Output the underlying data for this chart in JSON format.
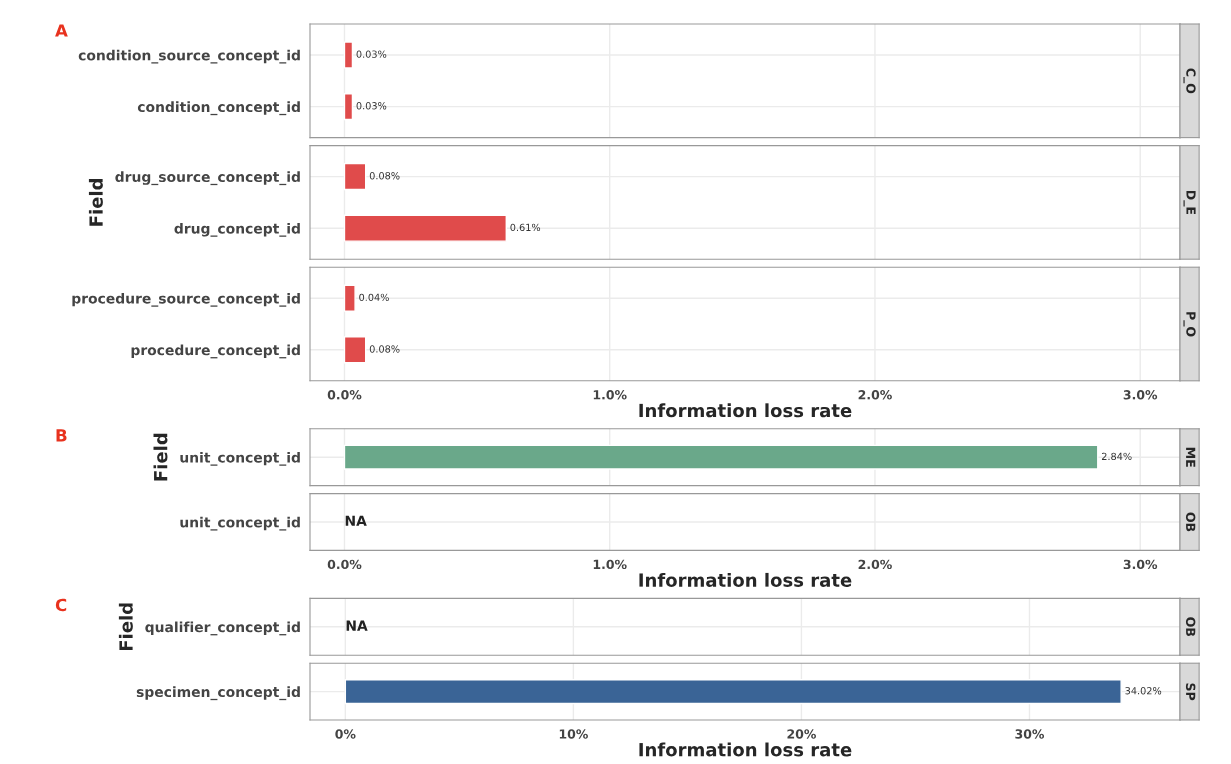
{
  "chart_data": [
    {
      "type": "bar",
      "orientation": "horizontal",
      "title": "C_O",
      "annotations": [
        "A"
      ],
      "categories": [
        "condition_source_concept_id",
        "condition_concept_id"
      ],
      "values": [
        0.03,
        0.03
      ],
      "color": "#e04b4b",
      "value_labels": [
        "0.03%",
        "0.03%"
      ],
      "xlim": [
        -0.13,
        3.15
      ],
      "xticks": [
        {
          "value": 0,
          "label": null
        },
        {
          "value": 1,
          "label": null
        },
        {
          "value": 2,
          "label": null
        },
        {
          "value": 3,
          "label": null
        }
      ],
      "tick_labels": "y",
      "grid": true
    },
    {
      "type": "bar",
      "orientation": "horizontal",
      "title": "D_E",
      "ylabel": "Field",
      "categories": [
        "drug_source_concept_id",
        "drug_concept_id"
      ],
      "values": [
        0.08,
        0.61
      ],
      "color": "#e04b4b",
      "value_labels": [
        "0.08%",
        "0.61%"
      ],
      "xlim": [
        -0.13,
        3.15
      ],
      "xticks": [
        {
          "value": 0,
          "label": null
        },
        {
          "value": 1,
          "label": null
        },
        {
          "value": 2,
          "label": null
        },
        {
          "value": 3,
          "label": null
        }
      ],
      "tick_labels": "y",
      "grid": true
    },
    {
      "type": "bar",
      "orientation": "horizontal",
      "title": "P_O",
      "xlabel": "Information loss rate",
      "categories": [
        "procedure_source_concept_id",
        "procedure_concept_id"
      ],
      "values": [
        0.04,
        0.08
      ],
      "color": "#e04b4b",
      "value_labels": [
        "0.04%",
        "0.08%"
      ],
      "xlim": [
        -0.13,
        3.15
      ],
      "xticks": [
        {
          "value": 0,
          "label": "0.0%"
        },
        {
          "value": 1,
          "label": "1.0%"
        },
        {
          "value": 2,
          "label": "2.0%"
        },
        {
          "value": 3,
          "label": "3.0%"
        }
      ],
      "grid": true
    },
    {
      "type": "bar",
      "orientation": "horizontal",
      "title": "ME",
      "annotations": [
        "B"
      ],
      "ylabel": "Field",
      "categories": [
        "unit_concept_id"
      ],
      "values": [
        2.84
      ],
      "color": "#6aa88a",
      "value_labels": [
        "2.84%"
      ],
      "xlim": [
        -0.13,
        3.15
      ],
      "xticks": [
        {
          "value": 0,
          "label": null
        },
        {
          "value": 1,
          "label": null
        },
        {
          "value": 2,
          "label": null
        },
        {
          "value": 3,
          "label": null
        }
      ],
      "tick_labels": "y",
      "grid": true
    },
    {
      "type": "bar",
      "orientation": "horizontal",
      "title": "OB",
      "xlabel": "Information loss rate",
      "categories": [
        "unit_concept_id"
      ],
      "values": [
        null
      ],
      "value_labels": [
        "NA"
      ],
      "xlim": [
        -0.13,
        3.15
      ],
      "xticks": [
        {
          "value": 0,
          "label": "0.0%"
        },
        {
          "value": 1,
          "label": "1.0%"
        },
        {
          "value": 2,
          "label": "2.0%"
        },
        {
          "value": 3,
          "label": "3.0%"
        }
      ],
      "grid": true
    },
    {
      "type": "bar",
      "orientation": "horizontal",
      "title": "OB",
      "annotations": [
        "C"
      ],
      "ylabel": "Field",
      "categories": [
        "qualifier_concept_id"
      ],
      "values": [
        null
      ],
      "value_labels": [
        "NA"
      ],
      "xlim": [
        -1.55,
        36.6
      ],
      "xticks": [
        {
          "value": 0,
          "label": null
        },
        {
          "value": 10,
          "label": null
        },
        {
          "value": 20,
          "label": null
        },
        {
          "value": 30,
          "label": null
        }
      ],
      "tick_labels": "y",
      "grid": true
    },
    {
      "type": "bar",
      "orientation": "horizontal",
      "title": "SP",
      "xlabel": "Information loss rate",
      "categories": [
        "specimen_concept_id"
      ],
      "values": [
        34.02
      ],
      "color": "#3a6496",
      "value_labels": [
        "34.02%"
      ],
      "xlim": [
        -1.55,
        36.6
      ],
      "xticks": [
        {
          "value": 0,
          "label": "0%"
        },
        {
          "value": 10,
          "label": "10%"
        },
        {
          "value": 20,
          "label": "20%"
        },
        {
          "value": 30,
          "label": "30%"
        }
      ],
      "grid": true
    }
  ]
}
